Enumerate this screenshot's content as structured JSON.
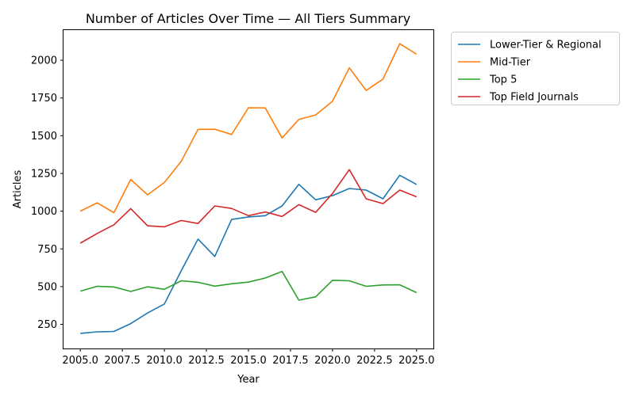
{
  "chart_data": {
    "type": "line",
    "title": "Number of Articles Over Time — All Tiers Summary",
    "xlabel": "Year",
    "ylabel": "Articles",
    "xlim": [
      2004,
      2026
    ],
    "ylim": [
      90,
      2200
    ],
    "x_ticks": [
      2005.0,
      2007.5,
      2010.0,
      2012.5,
      2015.0,
      2017.5,
      2020.0,
      2022.5,
      2025.0
    ],
    "x_tick_labels": [
      "2005.0",
      "2007.5",
      "2010.0",
      "2012.5",
      "2015.0",
      "2017.5",
      "2020.0",
      "2022.5",
      "2025.0"
    ],
    "y_ticks": [
      250,
      500,
      750,
      1000,
      1250,
      1500,
      1750,
      2000
    ],
    "y_tick_labels": [
      "250",
      "500",
      "750",
      "1000",
      "1250",
      "1500",
      "1750",
      "2000"
    ],
    "grid": false,
    "legend_position": "outside-top-right",
    "x": [
      2005,
      2006,
      2007,
      2008,
      2009,
      2010,
      2011,
      2012,
      2013,
      2014,
      2015,
      2016,
      2017,
      2018,
      2019,
      2020,
      2021,
      2022,
      2023,
      2024,
      2025
    ],
    "series": [
      {
        "name": "Lower-Tier & Regional",
        "color": "#1f77b4",
        "values": [
          190,
          200,
          203,
          255,
          325,
          385,
          605,
          815,
          700,
          945,
          962,
          970,
          1035,
          1178,
          1075,
          1103,
          1150,
          1140,
          1082,
          1238,
          1177
        ]
      },
      {
        "name": "Mid-Tier",
        "color": "#ff7f0e",
        "values": [
          1000,
          1055,
          990,
          1210,
          1108,
          1190,
          1330,
          1542,
          1543,
          1508,
          1685,
          1684,
          1485,
          1608,
          1638,
          1728,
          1950,
          1800,
          1875,
          2110,
          2040
        ]
      },
      {
        "name": "Top 5",
        "color": "#2ca02c",
        "values": [
          470,
          502,
          498,
          468,
          499,
          482,
          539,
          529,
          503,
          519,
          530,
          557,
          600,
          410,
          432,
          542,
          539,
          502,
          511,
          512,
          460
        ]
      },
      {
        "name": "Top Field Journals",
        "color": "#d62728",
        "values": [
          788,
          852,
          910,
          1017,
          903,
          896,
          938,
          918,
          1035,
          1018,
          970,
          995,
          965,
          1043,
          992,
          1117,
          1275,
          1082,
          1050,
          1140,
          1095
        ]
      }
    ]
  }
}
